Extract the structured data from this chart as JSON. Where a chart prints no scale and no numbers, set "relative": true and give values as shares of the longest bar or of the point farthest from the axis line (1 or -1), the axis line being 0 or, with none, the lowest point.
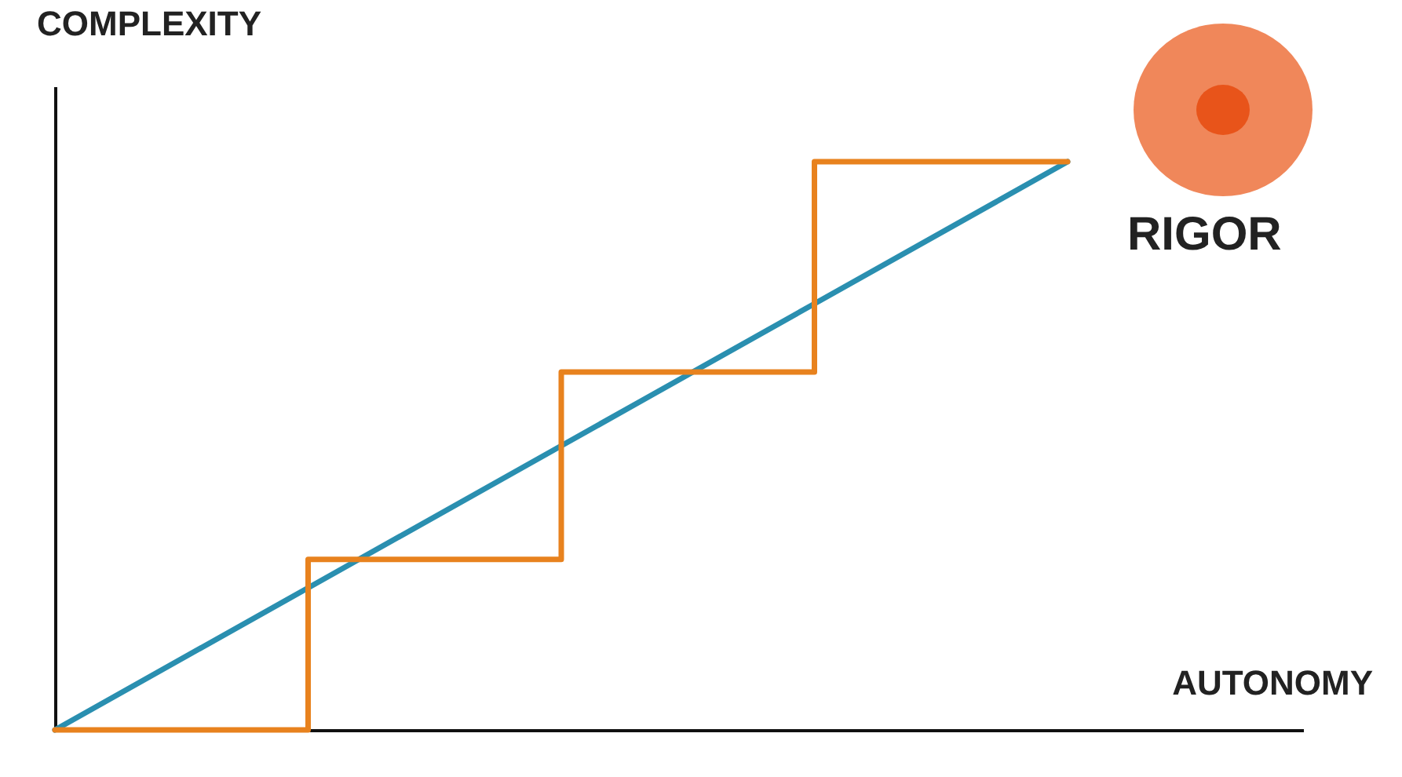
{
  "chart_data": {
    "type": "line",
    "xlabel": "AUTONOMY",
    "ylabel": "COMPLEXITY",
    "categories": [
      null,
      null,
      null,
      null,
      null
    ],
    "relative": true,
    "tick_labels": false,
    "series": [
      {
        "type": "line",
        "color": "#2a8fb0",
        "values": [
          0,
          0.25,
          0.5,
          0.75,
          1
        ]
      },
      {
        "type": "step",
        "color": "#e8821e",
        "values": [
          0,
          0.3,
          0.63,
          1,
          1
        ]
      }
    ],
    "annotations": [
      "RIGOR"
    ]
  }
}
